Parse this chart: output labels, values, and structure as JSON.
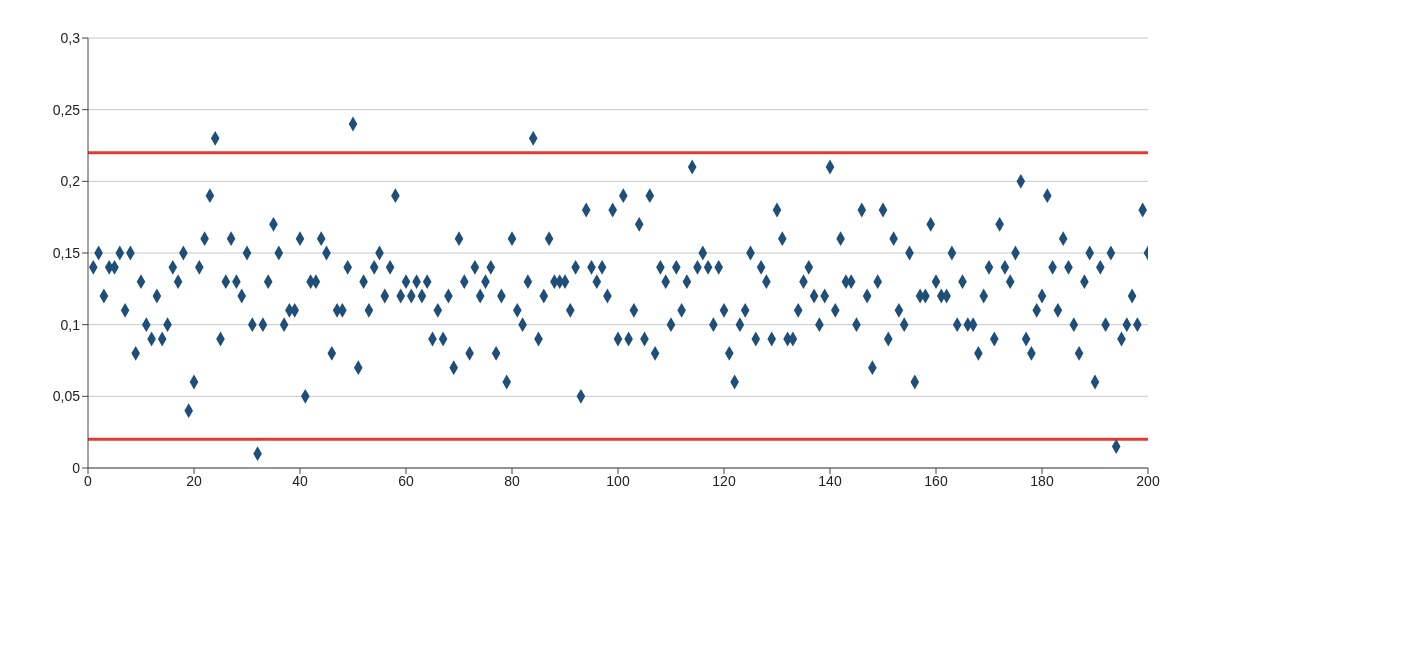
{
  "chart_data": {
    "type": "scatter",
    "x": [
      1,
      2,
      3,
      4,
      5,
      6,
      7,
      8,
      9,
      10,
      11,
      12,
      13,
      14,
      15,
      16,
      17,
      18,
      19,
      20,
      21,
      22,
      23,
      24,
      25,
      26,
      27,
      28,
      29,
      30,
      31,
      32,
      33,
      34,
      35,
      36,
      37,
      38,
      39,
      40,
      41,
      42,
      43,
      44,
      45,
      46,
      47,
      48,
      49,
      50,
      51,
      52,
      53,
      54,
      55,
      56,
      57,
      58,
      59,
      60,
      61,
      62,
      63,
      64,
      65,
      66,
      67,
      68,
      69,
      70,
      71,
      72,
      73,
      74,
      75,
      76,
      77,
      78,
      79,
      80,
      81,
      82,
      83,
      84,
      85,
      86,
      87,
      88,
      89,
      90,
      91,
      92,
      93,
      94,
      95,
      96,
      97,
      98,
      99,
      100,
      101,
      102,
      103,
      104,
      105,
      106,
      107,
      108,
      109,
      110,
      111,
      112,
      113,
      114,
      115,
      116,
      117,
      118,
      119,
      120,
      121,
      122,
      123,
      124,
      125,
      126,
      127,
      128,
      129,
      130,
      131,
      132,
      133,
      134,
      135,
      136,
      137,
      138,
      139,
      140,
      141,
      142,
      143,
      144,
      145,
      146,
      147,
      148,
      149,
      150,
      151,
      152,
      153,
      154,
      155,
      156,
      157,
      158,
      159,
      160,
      161,
      162,
      163,
      164,
      165,
      166,
      167,
      168,
      169,
      170,
      171,
      172,
      173,
      174,
      175,
      176,
      177,
      178,
      179,
      180,
      181,
      182,
      183,
      184,
      185,
      186,
      187,
      188,
      189,
      190,
      191,
      192,
      193,
      194,
      195,
      196,
      197,
      198,
      199,
      200
    ],
    "series": [
      {
        "color": "#1f4e79",
        "values": [
          0.14,
          0.15,
          0.12,
          0.14,
          0.14,
          0.15,
          0.11,
          0.15,
          0.08,
          0.13,
          0.1,
          0.09,
          0.12,
          0.09,
          0.1,
          0.14,
          0.13,
          0.15,
          0.04,
          0.06,
          0.14,
          0.16,
          0.19,
          0.23,
          0.09,
          0.13,
          0.16,
          0.13,
          0.12,
          0.15,
          0.1,
          0.01,
          0.1,
          0.13,
          0.17,
          0.15,
          0.1,
          0.11,
          0.11,
          0.16,
          0.05,
          0.13,
          0.13,
          0.16,
          0.15,
          0.08,
          0.11,
          0.11,
          0.14,
          0.24,
          0.07,
          0.13,
          0.11,
          0.14,
          0.15,
          0.12,
          0.14,
          0.19,
          0.12,
          0.13,
          0.12,
          0.13,
          0.12,
          0.13,
          0.09,
          0.11,
          0.09,
          0.12,
          0.07,
          0.16,
          0.13,
          0.08,
          0.14,
          0.12,
          0.13,
          0.14,
          0.08,
          0.12,
          0.06,
          0.16,
          0.11,
          0.1,
          0.13,
          0.23,
          0.09,
          0.12,
          0.16,
          0.13,
          0.13,
          0.13,
          0.11,
          0.14,
          0.05,
          0.18,
          0.14,
          0.13,
          0.14,
          0.12,
          0.18,
          0.09,
          0.19,
          0.09,
          0.11,
          0.17,
          0.09,
          0.19,
          0.08,
          0.14,
          0.13,
          0.1,
          0.14,
          0.11,
          0.13,
          0.21,
          0.14,
          0.15,
          0.14,
          0.1,
          0.14,
          0.11,
          0.08,
          0.06,
          0.1,
          0.11,
          0.15,
          0.09,
          0.14,
          0.13,
          0.09,
          0.18,
          0.16,
          0.09,
          0.09,
          0.11,
          0.13,
          0.14,
          0.12,
          0.1,
          0.12,
          0.21,
          0.11,
          0.16,
          0.13,
          0.13,
          0.1,
          0.18,
          0.12,
          0.07,
          0.13,
          0.18,
          0.09,
          0.16,
          0.11,
          0.1,
          0.15,
          0.06,
          0.12,
          0.12,
          0.17,
          0.13,
          0.12,
          0.12,
          0.15,
          0.1,
          0.13,
          0.1,
          0.1,
          0.08,
          0.12,
          0.14,
          0.09,
          0.17,
          0.14,
          0.13,
          0.15,
          0.2,
          0.09,
          0.08,
          0.11,
          0.12,
          0.19,
          0.14,
          0.11,
          0.16,
          0.14,
          0.1,
          0.08,
          0.13,
          0.15,
          0.06,
          0.14,
          0.1,
          0.15,
          0.015,
          0.09,
          0.1,
          0.12,
          0.1,
          0.18,
          0.15
        ]
      }
    ],
    "xlim": [
      0,
      200
    ],
    "xticks": [
      0,
      20,
      40,
      60,
      80,
      100,
      120,
      140,
      160,
      180,
      200
    ],
    "ylim": [
      0,
      0.3
    ],
    "yticks": [
      0,
      {
        "value": 0.05,
        "label": "0,05"
      },
      {
        "value": 0.1,
        "label": "0,1"
      },
      {
        "value": 0.15,
        "label": "0,15"
      },
      {
        "value": 0.2,
        "label": "0,2"
      },
      {
        "value": 0.25,
        "label": "0,25"
      },
      {
        "value": 0.3,
        "label": "0,3"
      }
    ],
    "ref_lines": [
      {
        "axis": "y",
        "value": 0.22,
        "color": "#e03c31"
      },
      {
        "axis": "y",
        "value": 0.02,
        "color": "#e03c31"
      }
    ],
    "grid": "y",
    "marker": "diamond"
  }
}
